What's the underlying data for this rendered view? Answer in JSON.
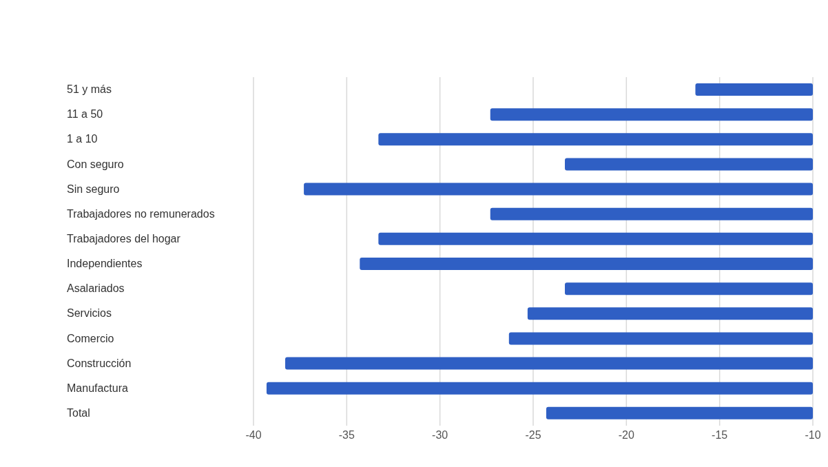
{
  "chart_data": {
    "type": "bar",
    "orientation": "horizontal",
    "categories": [
      "51 y más",
      "11 a 50",
      "1 a 10",
      "Con seguro",
      "Sin seguro",
      "Trabajadores no remunerados",
      "Trabajadores del hogar",
      "Independientes",
      "Asalariados",
      "Servicios",
      "Comercio",
      "Construcción",
      "Manufactura",
      "Total"
    ],
    "values": [
      -16.3,
      -27.3,
      -33.3,
      -23.3,
      -37.3,
      -27.3,
      -33.3,
      -34.3,
      -23.3,
      -25.3,
      -26.3,
      -38.3,
      -39.3,
      -24.3
    ],
    "color": "#2f5fc4",
    "xlim": [
      -40,
      -10
    ],
    "xticks": [
      -40,
      -35,
      -30,
      -25,
      -20,
      -15,
      -10
    ],
    "grid": "x"
  }
}
